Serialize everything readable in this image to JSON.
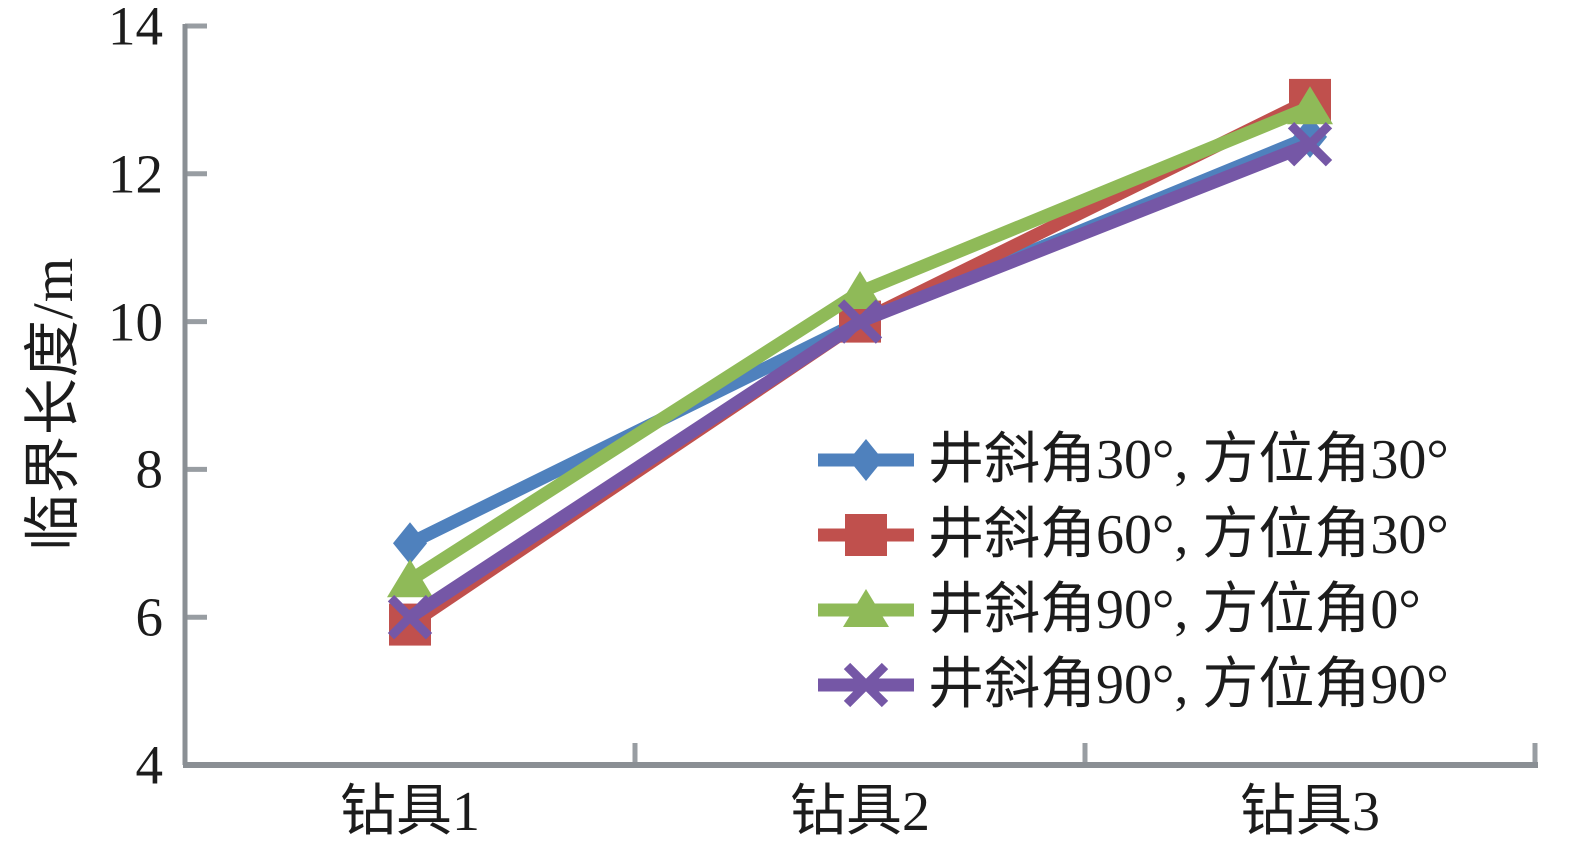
{
  "chart_data": {
    "type": "line",
    "title": "",
    "xlabel": "",
    "ylabel": "临界长度/m",
    "categories": [
      "钻具1",
      "钻具2",
      "钻具3"
    ],
    "ylim": [
      4,
      14
    ],
    "yticks": [
      4,
      6,
      8,
      10,
      12,
      14
    ],
    "grid": false,
    "legend_position": "inside-right",
    "axis_color": "#8a8f94",
    "tick_color": "#989da2",
    "series": [
      {
        "name": "井斜角30°, 方位角30°",
        "marker": "diamond",
        "color": "#4F81BD",
        "values": [
          7.0,
          10.0,
          12.5
        ]
      },
      {
        "name": "井斜角60°, 方位角30°",
        "marker": "square",
        "color": "#C0504D",
        "values": [
          5.9,
          10.0,
          13.0
        ]
      },
      {
        "name": "井斜角90°, 方位角0°",
        "marker": "triangle",
        "color": "#8FBA58",
        "values": [
          6.5,
          10.4,
          12.9
        ]
      },
      {
        "name": "井斜角90°, 方位角90°",
        "marker": "x",
        "color": "#7557A6",
        "values": [
          6.0,
          10.0,
          12.4
        ]
      }
    ]
  }
}
